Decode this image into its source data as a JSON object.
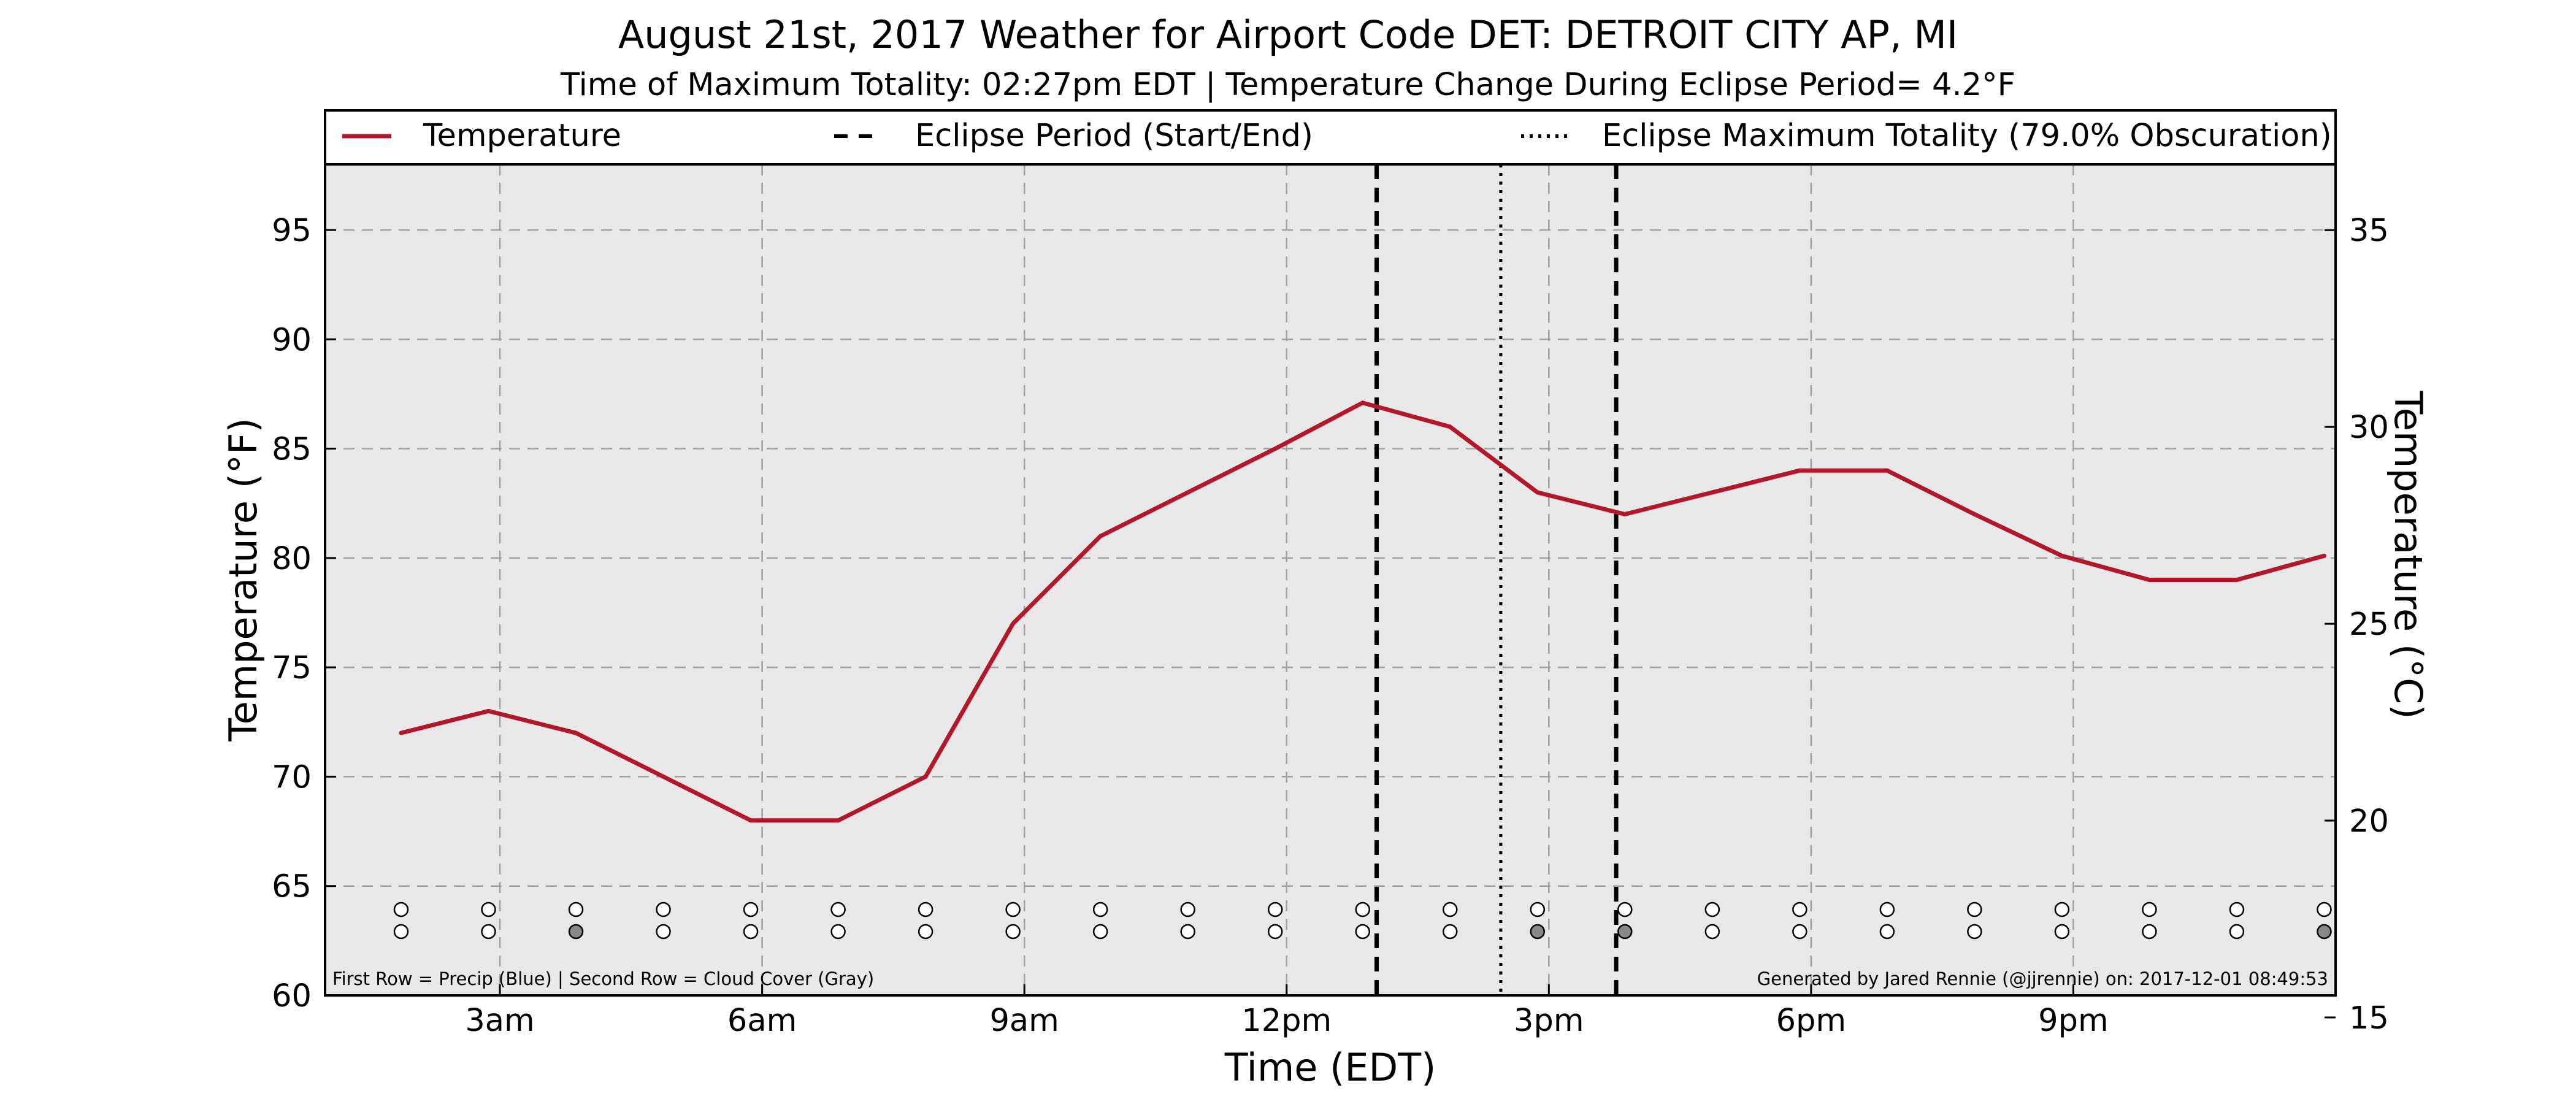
{
  "title": "August 21st, 2017 Weather for Airport Code DET: DETROIT CITY AP, MI",
  "subtitle": "Time of Maximum Totality: 02:27pm EDT | Temperature Change During Eclipse Period= 4.2°F",
  "footnote_left": "First Row = Precip (Blue) | Second Row = Cloud Cover (Gray)",
  "footnote_right": "Generated by Jared Rennie (@jjrennie) on: 2017-12-01 08:49:53",
  "colors": {
    "temperature_line": "#b2182b",
    "plot_background": "#e8e8e8",
    "cloud_marker": "#888888",
    "empty_marker": "#ffffff"
  },
  "chart_data": {
    "type": "line",
    "xlabel": "Time (EDT)",
    "ylabel": "Temperature (°F)",
    "ylabel_right": "Temperature (°C)",
    "xlim": [
      1,
      24
    ],
    "ylim": [
      60,
      98
    ],
    "ylim_right_c": [
      15.56,
      36.67
    ],
    "grid": true,
    "xticks": [
      {
        "x": 3,
        "label": "3am"
      },
      {
        "x": 6,
        "label": "6am"
      },
      {
        "x": 9,
        "label": "9am"
      },
      {
        "x": 12,
        "label": "12pm"
      },
      {
        "x": 15,
        "label": "3pm"
      },
      {
        "x": 18,
        "label": "6pm"
      },
      {
        "x": 21,
        "label": "9pm"
      }
    ],
    "yticks": [
      60,
      65,
      70,
      75,
      80,
      85,
      90,
      95
    ],
    "yticks_right": [
      15,
      20,
      25,
      30,
      35
    ],
    "legend": {
      "placement": "top",
      "entries": [
        {
          "label": "Temperature",
          "style": "solid"
        },
        {
          "label": "Eclipse Period (Start/End)",
          "style": "dashed"
        },
        {
          "label": "Eclipse Maximum Totality (79.0% Obscuration)",
          "style": "dotted"
        }
      ]
    },
    "series": [
      {
        "name": "Temperature",
        "x": [
          1.87,
          2.87,
          3.87,
          4.87,
          5.87,
          6.87,
          7.87,
          8.87,
          9.87,
          10.87,
          11.87,
          12.87,
          13.87,
          14.87,
          15.87,
          16.87,
          17.87,
          18.87,
          19.87,
          20.87,
          21.87,
          22.87,
          23.87
        ],
        "y": [
          72,
          73,
          72,
          70,
          68,
          68,
          70,
          77,
          81,
          83,
          85,
          87.1,
          86,
          83,
          82,
          83,
          84,
          84,
          82,
          80.1,
          79,
          79,
          80.1
        ]
      }
    ],
    "eclipse_start": 13.03,
    "eclipse_end": 15.77,
    "eclipse_max": 14.45,
    "markers": {
      "x": [
        1.87,
        2.87,
        3.87,
        4.87,
        5.87,
        6.87,
        7.87,
        8.87,
        9.87,
        10.87,
        11.87,
        12.87,
        13.87,
        14.87,
        15.87,
        16.87,
        17.87,
        18.87,
        19.87,
        20.87,
        21.87,
        22.87,
        23.87
      ],
      "precip": [
        0,
        0,
        0,
        0,
        0,
        0,
        0,
        0,
        0,
        0,
        0,
        0,
        0,
        0,
        0,
        0,
        0,
        0,
        0,
        0,
        0,
        0,
        0
      ],
      "cloud": [
        0,
        0,
        1,
        0,
        0,
        0,
        0,
        0,
        0,
        0,
        0,
        0,
        0,
        1,
        1,
        0,
        0,
        0,
        0,
        0,
        0,
        0,
        1
      ]
    }
  }
}
